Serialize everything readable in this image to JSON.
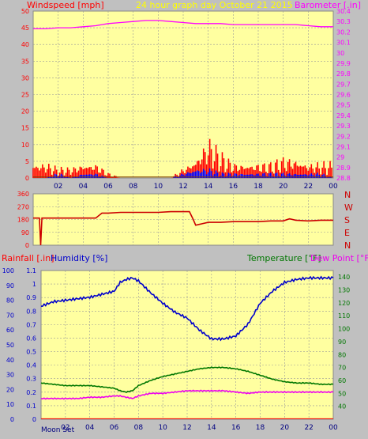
{
  "header": {
    "left_label": "Windspeed [mph]",
    "center_label": "24 hour graph day   October 21 2015",
    "right_label": "Barometer [.in]"
  },
  "colors": {
    "plot_bg": "#ffffa0",
    "frame": "#c0c0c0",
    "wind": "#ff0000",
    "gust": "#0000ff",
    "pressure": "#ff00ff",
    "direction": "#cc0000",
    "humidity": "#0000cc",
    "temperature": "#007700",
    "dewpoint": "#ee00ee",
    "title": "#ffff00"
  },
  "x_ticks": [
    "02",
    "04",
    "06",
    "08",
    "10",
    "12",
    "14",
    "16",
    "18",
    "20",
    "22",
    "00"
  ],
  "compass": [
    "N",
    "W",
    "S",
    "E",
    "N"
  ],
  "bottom_panel": {
    "left_label": "Rainfall [.in]",
    "humidity_label": "Humidity [%]",
    "temp_label": "Temperature [°F]",
    "dew_label": "Dew Point [°F]",
    "moon_label": "Moon Set"
  },
  "chart_data": [
    {
      "type": "line",
      "title": "24 hour graph day   October 21 2015",
      "xlabel": "",
      "ylabel": "Windspeed [mph]",
      "ylabel_right": "Barometer [.in]",
      "ylim": [
        0,
        50
      ],
      "ylim_right": [
        28.8,
        30.4
      ],
      "y_ticks": [
        "0",
        "5",
        "10",
        "15",
        "20",
        "25",
        "30",
        "35",
        "40",
        "45",
        "50"
      ],
      "y_ticks_right": [
        "28.8",
        "28.9",
        "29",
        "29.1",
        "29.2",
        "29.3",
        "29.4",
        "29.5",
        "29.6",
        "29.7",
        "29.8",
        "29.9",
        "30",
        "30.1",
        "30.2",
        "30.3",
        "30.4"
      ],
      "grid": true,
      "series": [
        {
          "name": "Barometer",
          "x": [
            0,
            1,
            2,
            3,
            4,
            5,
            6,
            7,
            8,
            9,
            10,
            11,
            12,
            13,
            14,
            15,
            16,
            17,
            18,
            19,
            20,
            21,
            22,
            23,
            24
          ],
          "values": [
            30.23,
            30.23,
            30.24,
            30.24,
            30.25,
            30.26,
            30.28,
            30.29,
            30.3,
            30.31,
            30.31,
            30.3,
            30.29,
            30.28,
            30.28,
            30.28,
            30.27,
            30.27,
            30.27,
            30.27,
            30.27,
            30.27,
            30.26,
            30.25,
            30.25
          ]
        },
        {
          "name": "Windspeed",
          "x": [
            0,
            1,
            2,
            3,
            4,
            5,
            6,
            7,
            8,
            9,
            10,
            11,
            12,
            13,
            14,
            15,
            16,
            17,
            18,
            19,
            20,
            21,
            22,
            23,
            24
          ],
          "values": [
            3,
            3,
            2,
            2,
            3,
            3,
            1,
            0,
            0,
            0,
            0,
            0,
            2,
            4,
            8,
            5,
            3,
            3,
            3,
            3,
            4,
            4,
            3,
            3,
            3
          ]
        },
        {
          "name": "Gust",
          "x": [
            0,
            1,
            2,
            3,
            4,
            5,
            6,
            7,
            8,
            9,
            10,
            11,
            12,
            13,
            14,
            15,
            16,
            17,
            18,
            19,
            20,
            21,
            22,
            23,
            24
          ],
          "values": [
            0,
            0,
            1,
            0,
            1,
            1,
            0,
            0,
            0,
            0,
            0,
            0,
            1,
            2,
            2,
            1,
            1,
            1,
            1,
            1,
            1,
            1,
            1,
            1,
            0
          ]
        }
      ]
    },
    {
      "type": "line",
      "ylabel": "",
      "ylim": [
        0,
        360
      ],
      "y_ticks": [
        "0",
        "90",
        "180",
        "270",
        "360"
      ],
      "grid": true,
      "series": [
        {
          "name": "Wind direction",
          "x": [
            0,
            0.5,
            0.6,
            0.7,
            1,
            2,
            3,
            4,
            5,
            5.5,
            6,
            7,
            8,
            9,
            10,
            11,
            12,
            12.5,
            12.8,
            13,
            13.5,
            14,
            15,
            16,
            17,
            18,
            19,
            20,
            20.5,
            21,
            22,
            23,
            24
          ],
          "values": [
            190,
            190,
            0,
            190,
            190,
            190,
            190,
            190,
            190,
            225,
            225,
            230,
            230,
            230,
            230,
            235,
            235,
            235,
            180,
            140,
            150,
            160,
            160,
            165,
            165,
            165,
            170,
            170,
            185,
            175,
            170,
            175,
            175
          ]
        }
      ]
    },
    {
      "type": "line",
      "ylabel": "Humidity [%]",
      "ylim": [
        0,
        1.1
      ],
      "y_ticks": [
        "0",
        "0.1",
        "0.2",
        "0.3",
        "0.4",
        "0.5",
        "0.6",
        "0.7",
        "0.8",
        "0.9",
        "1",
        "1.1"
      ],
      "ylabel_left": "Rainfall [.in]",
      "ylim_left": [
        0,
        100
      ],
      "y_ticks_left": [
        "0",
        "10",
        "20",
        "30",
        "40",
        "50",
        "60",
        "70",
        "80",
        "90",
        "100"
      ],
      "ylabel_right": "Temperature [°F] / Dew Point [°F]",
      "ylim_right": [
        30,
        145
      ],
      "y_ticks_right": [
        "40",
        "50",
        "60",
        "70",
        "80",
        "90",
        "100",
        "110",
        "120",
        "130",
        "140"
      ],
      "grid": true,
      "series": [
        {
          "name": "Humidity [%]",
          "x": [
            0,
            1,
            2,
            3,
            4,
            5,
            6,
            6.5,
            7,
            7.5,
            8,
            9,
            10,
            11,
            12,
            13,
            14,
            15,
            16,
            17,
            18,
            19,
            20,
            21,
            22,
            23,
            24
          ],
          "values": [
            76,
            79,
            80,
            81,
            82,
            84,
            86,
            92,
            94,
            95,
            93,
            85,
            78,
            72,
            68,
            60,
            54,
            54,
            56,
            64,
            78,
            86,
            92,
            94,
            95,
            95,
            95
          ]
        },
        {
          "name": "Temperature [°F]",
          "x": [
            0,
            1,
            2,
            3,
            4,
            5,
            6,
            6.5,
            7,
            7.5,
            8,
            9,
            10,
            11,
            12,
            13,
            14,
            15,
            16,
            17,
            18,
            19,
            20,
            21,
            22,
            23,
            24
          ],
          "values": [
            58,
            57,
            56,
            56,
            56,
            55,
            54,
            52,
            51,
            52,
            56,
            60,
            63,
            65,
            67,
            69,
            70,
            70,
            69,
            67,
            64,
            61,
            59,
            58,
            58,
            57,
            57
          ]
        },
        {
          "name": "Dew Point [°F]",
          "x": [
            0,
            1,
            2,
            3,
            4,
            5,
            6,
            6.5,
            7,
            7.5,
            8,
            9,
            10,
            11,
            12,
            13,
            14,
            15,
            16,
            17,
            18,
            19,
            20,
            21,
            22,
            23,
            24
          ],
          "values": [
            46,
            46,
            46,
            46,
            47,
            47,
            48,
            48,
            47,
            46,
            48,
            50,
            50,
            51,
            52,
            52,
            52,
            52,
            51,
            50,
            51,
            51,
            51,
            51,
            51,
            51,
            51
          ]
        }
      ]
    }
  ]
}
